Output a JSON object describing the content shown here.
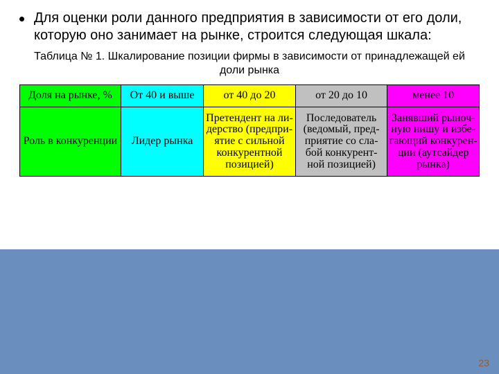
{
  "bullet_text": "Для оценки роли данного предприятия в зависимости от его доли, которую оно занимает на рынке, строится следующая шкала:",
  "caption": "Таблица № 1. Шкалирование позиции фирмы в зависимости от принадлежащей ей доли рынка",
  "table": {
    "col_widths": [
      "22%",
      "18%",
      "20%",
      "20%",
      "20%"
    ],
    "header_row": {
      "cells": [
        {
          "text": "Доля на рынке, %",
          "bg": "#00ff00"
        },
        {
          "text": "От 40 и выше",
          "bg": "#00ffff"
        },
        {
          "text": "от 40 до 20",
          "bg": "#ffff00"
        },
        {
          "text": "от 20 до 10",
          "bg": "#c0c0c0"
        },
        {
          "text": "менее 10",
          "bg": "#ff00ff"
        }
      ]
    },
    "body_row": {
      "cells": [
        {
          "text": "Роль в конкуренции",
          "bg": "#00ff00"
        },
        {
          "text": "Лидер рынка",
          "bg": "#00ffff"
        },
        {
          "text": "Претендент на ли-\nдерство (предпри-\nятие с сильной\nконкурентной\nпозицией)",
          "bg": "#ffff00"
        },
        {
          "text": "Последователь\n(ведомый, пред-\nприятие со сла-\nбой конкурент-\nной позицией)",
          "bg": "#c0c0c0"
        },
        {
          "text": "Занявший рыноч-\nную нишу и избе-\nгающий конкурен-\nции (аутсайдер\nрынка)",
          "bg": "#ff00ff"
        }
      ]
    }
  },
  "bottom_bar_color": "#6a8fbf",
  "page_number": "23",
  "page_number_color": "#8a5c3b"
}
